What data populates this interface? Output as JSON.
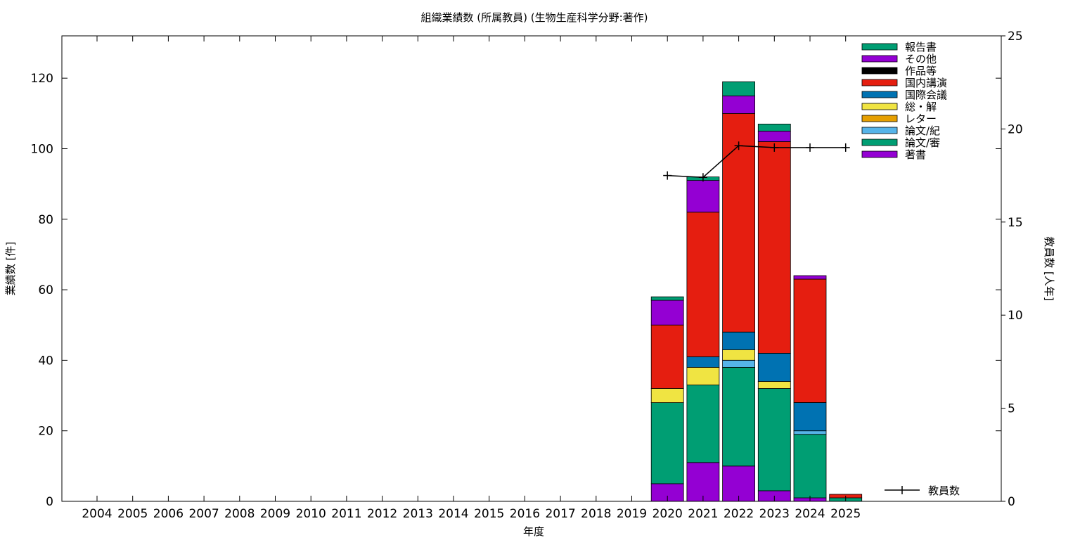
{
  "chart_data": {
    "type": "bar",
    "stacked": true,
    "title": "組織業績数 (所属教員) (生物生産科学分野:著作)",
    "xlabel": "年度",
    "ylabel": "業績数 [件]",
    "y2label": "教員数 [人年]",
    "ylim": [
      0,
      132
    ],
    "y2lim": [
      0,
      25
    ],
    "yticks": [
      0,
      20,
      40,
      60,
      80,
      100,
      120
    ],
    "y2ticks": [
      0,
      5,
      10,
      15,
      20,
      25
    ],
    "grid": false,
    "legend_position": "top-right",
    "categories": [
      "2004",
      "2005",
      "2006",
      "2007",
      "2008",
      "2009",
      "2010",
      "2011",
      "2012",
      "2013",
      "2014",
      "2015",
      "2016",
      "2017",
      "2018",
      "2019",
      "2020",
      "2021",
      "2022",
      "2023",
      "2024",
      "2025"
    ],
    "series": [
      {
        "name": "著書",
        "color": "#9400d3",
        "values": [
          0,
          0,
          0,
          0,
          0,
          0,
          0,
          0,
          0,
          0,
          0,
          0,
          0,
          0,
          0,
          0,
          5,
          11,
          10,
          3,
          1,
          0
        ]
      },
      {
        "name": "論文/審",
        "color": "#009e73",
        "values": [
          0,
          0,
          0,
          0,
          0,
          0,
          0,
          0,
          0,
          0,
          0,
          0,
          0,
          0,
          0,
          0,
          23,
          22,
          28,
          29,
          18,
          1
        ]
      },
      {
        "name": "論文/紀",
        "color": "#56b4e9",
        "values": [
          0,
          0,
          0,
          0,
          0,
          0,
          0,
          0,
          0,
          0,
          0,
          0,
          0,
          0,
          0,
          0,
          0,
          0,
          2,
          0,
          1,
          0
        ]
      },
      {
        "name": "レター",
        "color": "#e69f00",
        "values": [
          0,
          0,
          0,
          0,
          0,
          0,
          0,
          0,
          0,
          0,
          0,
          0,
          0,
          0,
          0,
          0,
          0,
          0,
          0,
          0,
          0,
          0
        ]
      },
      {
        "name": "総・解",
        "color": "#f0e442",
        "values": [
          0,
          0,
          0,
          0,
          0,
          0,
          0,
          0,
          0,
          0,
          0,
          0,
          0,
          0,
          0,
          0,
          4,
          5,
          3,
          2,
          0,
          0
        ]
      },
      {
        "name": "国際会議",
        "color": "#0072b2",
        "values": [
          0,
          0,
          0,
          0,
          0,
          0,
          0,
          0,
          0,
          0,
          0,
          0,
          0,
          0,
          0,
          0,
          0,
          3,
          5,
          8,
          8,
          0
        ]
      },
      {
        "name": "国内講演",
        "color": "#e51e10",
        "values": [
          0,
          0,
          0,
          0,
          0,
          0,
          0,
          0,
          0,
          0,
          0,
          0,
          0,
          0,
          0,
          0,
          18,
          41,
          62,
          60,
          35,
          1
        ]
      },
      {
        "name": "作品等",
        "color": "#000000",
        "values": [
          0,
          0,
          0,
          0,
          0,
          0,
          0,
          0,
          0,
          0,
          0,
          0,
          0,
          0,
          0,
          0,
          0,
          0,
          0,
          0,
          0,
          0
        ]
      },
      {
        "name": "その他",
        "color": "#9400d3",
        "values": [
          0,
          0,
          0,
          0,
          0,
          0,
          0,
          0,
          0,
          0,
          0,
          0,
          0,
          0,
          0,
          0,
          7,
          9,
          5,
          3,
          1,
          0
        ]
      },
      {
        "name": "報告書",
        "color": "#009e73",
        "values": [
          0,
          0,
          0,
          0,
          0,
          0,
          0,
          0,
          0,
          0,
          0,
          0,
          0,
          0,
          0,
          0,
          1,
          1,
          4,
          2,
          0,
          0
        ]
      }
    ],
    "line_series": {
      "name": "教員数",
      "color": "#000000",
      "axis": "y2",
      "points": [
        {
          "x": "2020",
          "y": 17.5
        },
        {
          "x": "2021",
          "y": 17.4
        },
        {
          "x": "2022",
          "y": 19.1
        },
        {
          "x": "2023",
          "y": 19.0
        },
        {
          "x": "2024",
          "y": 19.0
        },
        {
          "x": "2025",
          "y": 19.0
        }
      ]
    }
  }
}
